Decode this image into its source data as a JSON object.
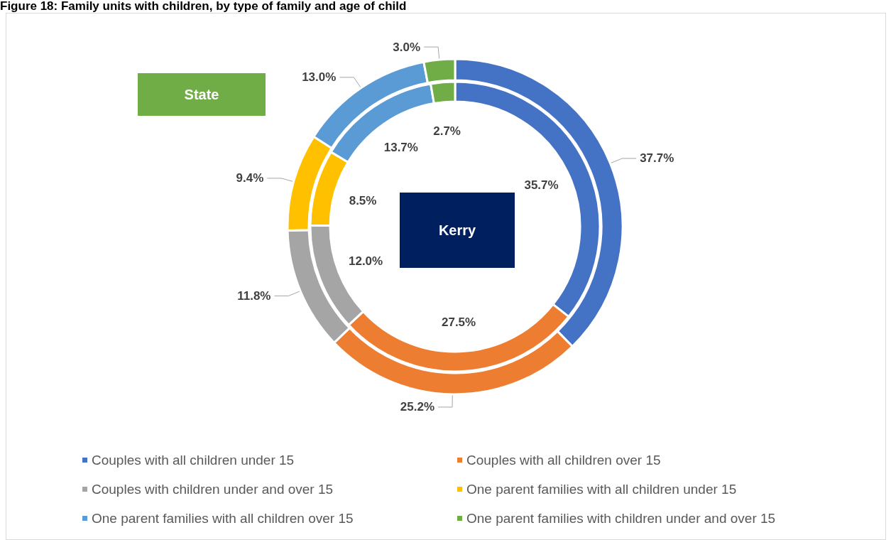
{
  "chart_data": {
    "type": "donut",
    "title": "Figure 18: Family units with children, by type of family and age of child",
    "categories": [
      "Couples with all children under 15",
      "Couples with all children over 15",
      "Couples with children under and over 15",
      "One parent families with all children under 15",
      "One parent families with all children over 15",
      "One parent families with children under and over 15"
    ],
    "colors": [
      "#4472c4",
      "#ed7d31",
      "#a5a5a5",
      "#ffc000",
      "#5b9bd5",
      "#70ad47"
    ],
    "series": [
      {
        "values": [
          37.7,
          25.2,
          11.8,
          9.4,
          13.0,
          3.0
        ],
        "value_labels": [
          "37.7%",
          "25.2%",
          "11.8%",
          "9.4%",
          "13.0%",
          "3.0%"
        ]
      },
      {
        "values": [
          35.7,
          27.5,
          12.0,
          8.5,
          13.7,
          2.7
        ],
        "value_labels": [
          "35.7%",
          "27.5%",
          "12.0%",
          "8.5%",
          "13.7%",
          "2.7%"
        ]
      }
    ],
    "annotations": [
      "State",
      "Kerry"
    ],
    "legend": "bottom"
  }
}
